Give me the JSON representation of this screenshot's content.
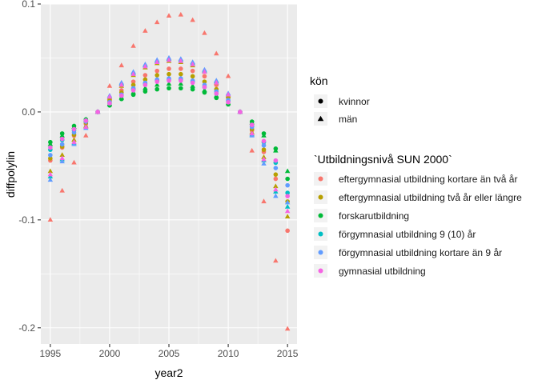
{
  "chart_data": {
    "type": "scatter",
    "xlabel": "year2",
    "ylabel": "diffpolylin",
    "xlim": [
      1994.2,
      2015.8
    ],
    "ylim": [
      -0.215,
      0.1
    ],
    "x_ticks": [
      1995,
      2000,
      2005,
      2010,
      2015
    ],
    "x_tick_labels": [
      "1995",
      "2000",
      "2005",
      "2010",
      "2015"
    ],
    "y_ticks": [
      0.1,
      0.0,
      -0.1,
      -0.2
    ],
    "y_tick_labels": [
      "0.1",
      "0.0",
      "-0.1",
      "-0.2"
    ],
    "grid": true,
    "legend_placement": "right",
    "shape_legend": {
      "title": "kön",
      "entries": [
        {
          "label": "kvinnor",
          "shape": "circle"
        },
        {
          "label": "män",
          "shape": "triangle"
        }
      ]
    },
    "color_legend": {
      "title": "`Utbildningsnivå SUN 2000`",
      "entries": [
        {
          "label": "eftergymnasial utbildning kortare än två år",
          "color": "#F8766D"
        },
        {
          "label": "eftergymnasial utbildning två år eller längre",
          "color": "#B79F00"
        },
        {
          "label": "forskarutbildning",
          "color": "#00BA38"
        },
        {
          "label": "förgymnasial utbildning 9 (10) år",
          "color": "#00BFC4"
        },
        {
          "label": "förgymnasial utbildning kortare än 9 år",
          "color": "#619CFF"
        },
        {
          "label": "gymnasial utbildning",
          "color": "#F564E3"
        }
      ]
    },
    "x": [
      1995,
      1996,
      1997,
      1998,
      1999,
      2000,
      2001,
      2002,
      2003,
      2004,
      2005,
      2006,
      2007,
      2008,
      2009,
      2010,
      2011,
      2012,
      2013,
      2014,
      2015
    ],
    "series": [
      {
        "color_index": 0,
        "shape": "triangle",
        "values": [
          -0.1,
          -0.073,
          -0.047,
          -0.022,
          0.0,
          0.024,
          0.043,
          0.061,
          0.075,
          0.083,
          0.089,
          0.09,
          0.085,
          0.073,
          0.054,
          0.033,
          0.0,
          -0.036,
          -0.083,
          -0.138,
          -0.201
        ]
      },
      {
        "color_index": 0,
        "shape": "circle",
        "values": [
          -0.045,
          -0.033,
          -0.022,
          -0.011,
          0.0,
          0.011,
          0.02,
          0.028,
          0.034,
          0.038,
          0.04,
          0.04,
          0.038,
          0.033,
          0.025,
          0.015,
          0.0,
          -0.017,
          -0.037,
          -0.062,
          -0.11
        ]
      },
      {
        "color_index": 1,
        "shape": "triangle",
        "values": [
          -0.055,
          -0.04,
          -0.026,
          -0.013,
          0.0,
          0.013,
          0.024,
          0.034,
          0.041,
          0.045,
          0.047,
          0.046,
          0.043,
          0.037,
          0.027,
          0.015,
          0.0,
          -0.019,
          -0.042,
          -0.069,
          -0.097
        ]
      },
      {
        "color_index": 1,
        "shape": "circle",
        "values": [
          -0.043,
          -0.032,
          -0.021,
          -0.01,
          0.0,
          0.01,
          0.018,
          0.025,
          0.03,
          0.034,
          0.035,
          0.035,
          0.033,
          0.028,
          0.021,
          0.013,
          0.0,
          -0.016,
          -0.035,
          -0.058,
          -0.083
        ]
      },
      {
        "color_index": 2,
        "shape": "triangle",
        "values": [
          -0.03,
          -0.022,
          -0.014,
          -0.007,
          0.0,
          0.007,
          0.013,
          0.018,
          0.022,
          0.025,
          0.026,
          0.026,
          0.024,
          0.02,
          0.015,
          0.008,
          0.0,
          -0.01,
          -0.022,
          -0.036,
          -0.055
        ]
      },
      {
        "color_index": 2,
        "shape": "circle",
        "values": [
          -0.028,
          -0.02,
          -0.013,
          -0.007,
          0.0,
          0.006,
          0.012,
          0.016,
          0.019,
          0.021,
          0.022,
          0.022,
          0.021,
          0.018,
          0.013,
          0.007,
          0.0,
          -0.009,
          -0.02,
          -0.034,
          -0.062
        ]
      },
      {
        "color_index": 3,
        "shape": "triangle",
        "values": [
          -0.06,
          -0.044,
          -0.029,
          -0.014,
          0.0,
          0.014,
          0.026,
          0.036,
          0.043,
          0.047,
          0.049,
          0.048,
          0.045,
          0.038,
          0.028,
          0.016,
          0.0,
          -0.021,
          -0.045,
          -0.074,
          -0.088
        ]
      },
      {
        "color_index": 3,
        "shape": "circle",
        "values": [
          -0.035,
          -0.026,
          -0.017,
          -0.008,
          0.0,
          0.008,
          0.015,
          0.021,
          0.026,
          0.029,
          0.03,
          0.03,
          0.028,
          0.023,
          0.017,
          0.01,
          0.0,
          -0.013,
          -0.028,
          -0.047,
          -0.075
        ]
      },
      {
        "color_index": 4,
        "shape": "triangle",
        "values": [
          -0.063,
          -0.046,
          -0.03,
          -0.015,
          0.0,
          0.015,
          0.027,
          0.037,
          0.044,
          0.048,
          0.05,
          0.049,
          0.046,
          0.039,
          0.029,
          0.017,
          0.0,
          -0.022,
          -0.048,
          -0.078,
          -0.084
        ]
      },
      {
        "color_index": 4,
        "shape": "circle",
        "values": [
          -0.04,
          -0.03,
          -0.019,
          -0.009,
          0.0,
          0.009,
          0.016,
          0.022,
          0.027,
          0.03,
          0.031,
          0.031,
          0.029,
          0.025,
          0.019,
          0.011,
          0.0,
          -0.014,
          -0.031,
          -0.052,
          -0.068
        ]
      },
      {
        "color_index": 5,
        "shape": "triangle",
        "values": [
          -0.058,
          -0.043,
          -0.028,
          -0.014,
          0.0,
          0.014,
          0.025,
          0.035,
          0.042,
          0.046,
          0.048,
          0.047,
          0.044,
          0.037,
          0.027,
          0.016,
          0.0,
          -0.02,
          -0.044,
          -0.072,
          -0.092
        ]
      },
      {
        "color_index": 5,
        "shape": "circle",
        "values": [
          -0.033,
          -0.025,
          -0.016,
          -0.008,
          0.0,
          0.008,
          0.015,
          0.02,
          0.025,
          0.028,
          0.029,
          0.029,
          0.027,
          0.023,
          0.017,
          0.009,
          0.0,
          -0.012,
          -0.027,
          -0.045,
          -0.078
        ]
      }
    ]
  }
}
